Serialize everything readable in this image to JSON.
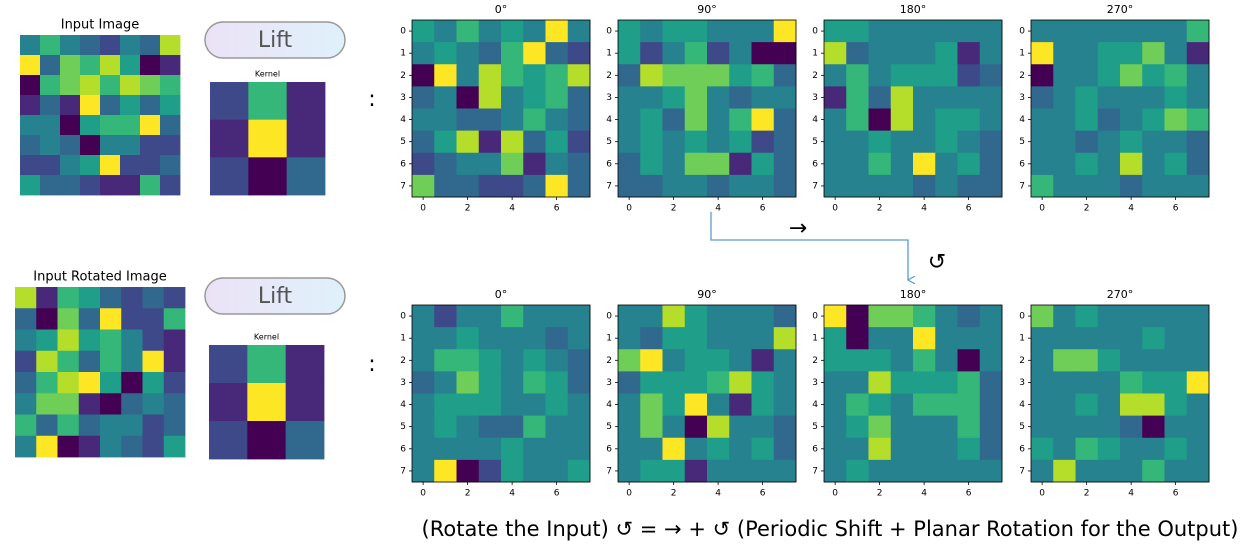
{
  "rows": [
    {
      "input": {
        "title": "Input Image",
        "cells": [
          [
            4,
            6,
            4,
            3,
            2,
            4,
            3,
            8
          ],
          [
            9,
            3,
            7,
            6,
            8,
            5,
            0,
            1
          ],
          [
            0,
            6,
            7,
            8,
            6,
            8,
            7,
            6
          ],
          [
            1,
            3,
            1,
            9,
            3,
            5,
            3,
            5
          ],
          [
            4,
            4,
            0,
            5,
            6,
            6,
            9,
            3
          ],
          [
            3,
            4,
            3,
            0,
            4,
            4,
            2,
            2
          ],
          [
            2,
            2,
            4,
            5,
            9,
            2,
            2,
            3
          ],
          [
            5,
            3,
            3,
            2,
            1,
            1,
            6,
            2
          ]
        ]
      },
      "button": "Lift",
      "kernel": {
        "title": "Kernel",
        "cells": [
          [
            2,
            6,
            1
          ],
          [
            1,
            9,
            1
          ],
          [
            2,
            0,
            3
          ]
        ]
      },
      "colon": ":",
      "outputs": [
        {
          "title": "0°",
          "cells": [
            [
              5,
              4,
              6,
              4,
              5,
              4,
              9,
              4
            ],
            [
              4,
              5,
              4,
              3,
              6,
              9,
              3,
              2
            ],
            [
              0,
              9,
              4,
              8,
              6,
              5,
              6,
              8
            ],
            [
              3,
              4,
              0,
              8,
              4,
              5,
              6,
              3
            ],
            [
              4,
              4,
              3,
              3,
              4,
              6,
              4,
              3
            ],
            [
              3,
              5,
              8,
              1,
              8,
              3,
              5,
              2
            ],
            [
              2,
              3,
              4,
              4,
              7,
              1,
              4,
              3
            ],
            [
              7,
              3,
              3,
              2,
              2,
              3,
              9,
              3
            ]
          ]
        },
        {
          "title": "90°",
          "cells": [
            [
              5,
              4,
              5,
              5,
              4,
              4,
              4,
              9
            ],
            [
              5,
              2,
              4,
              6,
              2,
              4,
              0,
              0
            ],
            [
              3,
              8,
              7,
              7,
              7,
              5,
              6,
              3
            ],
            [
              4,
              4,
              5,
              7,
              4,
              3,
              4,
              4
            ],
            [
              4,
              5,
              3,
              7,
              4,
              6,
              9,
              3
            ],
            [
              4,
              5,
              4,
              5,
              4,
              5,
              2,
              3
            ],
            [
              3,
              5,
              4,
              7,
              7,
              1,
              5,
              3
            ],
            [
              3,
              3,
              4,
              4,
              3,
              4,
              4,
              3
            ]
          ]
        },
        {
          "title": "180°",
          "cells": [
            [
              5,
              5,
              4,
              4,
              4,
              4,
              4,
              4
            ],
            [
              8,
              3,
              4,
              4,
              4,
              5,
              1,
              4
            ],
            [
              4,
              6,
              4,
              5,
              5,
              5,
              2,
              3
            ],
            [
              1,
              6,
              3,
              8,
              4,
              4,
              4,
              4
            ],
            [
              4,
              6,
              0,
              8,
              4,
              5,
              5,
              4
            ],
            [
              4,
              4,
              5,
              4,
              4,
              5,
              4,
              3
            ],
            [
              4,
              4,
              6,
              4,
              9,
              4,
              5,
              3
            ],
            [
              4,
              4,
              4,
              4,
              3,
              4,
              3,
              3
            ]
          ]
        },
        {
          "title": "270°",
          "cells": [
            [
              4,
              4,
              4,
              4,
              4,
              4,
              4,
              6
            ],
            [
              9,
              4,
              4,
              5,
              5,
              7,
              4,
              1
            ],
            [
              0,
              4,
              4,
              5,
              7,
              5,
              6,
              4
            ],
            [
              3,
              4,
              5,
              4,
              4,
              4,
              5,
              4
            ],
            [
              4,
              4,
              5,
              3,
              4,
              5,
              7,
              6
            ],
            [
              4,
              4,
              3,
              4,
              5,
              4,
              4,
              3
            ],
            [
              4,
              4,
              5,
              4,
              8,
              4,
              5,
              3
            ],
            [
              6,
              4,
              4,
              4,
              3,
              4,
              4,
              4
            ]
          ]
        }
      ]
    },
    {
      "input": {
        "title": "Input Rotated Image",
        "cells": [
          [
            8,
            1,
            6,
            5,
            3,
            2,
            3,
            2
          ],
          [
            3,
            0,
            7,
            3,
            9,
            2,
            2,
            6
          ],
          [
            4,
            5,
            8,
            5,
            6,
            4,
            2,
            1
          ],
          [
            2,
            8,
            6,
            3,
            6,
            4,
            9,
            1
          ],
          [
            3,
            6,
            8,
            9,
            5,
            0,
            5,
            2
          ],
          [
            4,
            7,
            7,
            1,
            0,
            3,
            4,
            3
          ],
          [
            6,
            3,
            6,
            3,
            4,
            4,
            2,
            3
          ],
          [
            4,
            9,
            0,
            1,
            4,
            3,
            2,
            5
          ]
        ]
      },
      "button": "Lift",
      "kernel": {
        "title": "Kernel",
        "cells": [
          [
            2,
            6,
            1
          ],
          [
            1,
            9,
            1
          ],
          [
            2,
            0,
            3
          ]
        ]
      },
      "colon": ":",
      "outputs": [
        {
          "title": "0°",
          "cells": [
            [
              4,
              2,
              4,
              4,
              6,
              4,
              4,
              4
            ],
            [
              4,
              4,
              5,
              4,
              4,
              4,
              3,
              4
            ],
            [
              4,
              6,
              6,
              5,
              4,
              5,
              4,
              3
            ],
            [
              3,
              4,
              7,
              5,
              4,
              6,
              5,
              3
            ],
            [
              4,
              5,
              5,
              5,
              4,
              4,
              5,
              4
            ],
            [
              4,
              5,
              4,
              3,
              3,
              6,
              4,
              4
            ],
            [
              4,
              4,
              4,
              4,
              5,
              4,
              4,
              4
            ],
            [
              4,
              9,
              0,
              2,
              5,
              4,
              4,
              5
            ]
          ]
        },
        {
          "title": "90°",
          "cells": [
            [
              4,
              4,
              8,
              5,
              4,
              4,
              4,
              3
            ],
            [
              4,
              3,
              5,
              5,
              4,
              4,
              4,
              8
            ],
            [
              7,
              9,
              4,
              5,
              5,
              4,
              1,
              4
            ],
            [
              3,
              5,
              5,
              5,
              6,
              8,
              5,
              4
            ],
            [
              4,
              7,
              5,
              9,
              4,
              1,
              5,
              4
            ],
            [
              4,
              7,
              4,
              0,
              8,
              4,
              4,
              3
            ],
            [
              4,
              4,
              9,
              4,
              5,
              4,
              5,
              3
            ],
            [
              4,
              5,
              5,
              1,
              4,
              4,
              4,
              4
            ]
          ]
        },
        {
          "title": "180°",
          "cells": [
            [
              9,
              0,
              7,
              7,
              6,
              4,
              3,
              4
            ],
            [
              5,
              0,
              4,
              4,
              9,
              4,
              4,
              4
            ],
            [
              5,
              5,
              5,
              4,
              6,
              4,
              0,
              4
            ],
            [
              4,
              4,
              8,
              5,
              5,
              5,
              6,
              3
            ],
            [
              4,
              6,
              5,
              4,
              6,
              6,
              6,
              3
            ],
            [
              4,
              5,
              7,
              4,
              4,
              4,
              6,
              3
            ],
            [
              4,
              4,
              8,
              4,
              4,
              4,
              5,
              3
            ],
            [
              4,
              5,
              4,
              4,
              4,
              4,
              4,
              4
            ]
          ]
        },
        {
          "title": "270°",
          "cells": [
            [
              7,
              4,
              5,
              4,
              4,
              4,
              4,
              4
            ],
            [
              4,
              4,
              4,
              4,
              4,
              5,
              4,
              4
            ],
            [
              4,
              7,
              7,
              5,
              4,
              4,
              4,
              4
            ],
            [
              4,
              4,
              4,
              4,
              6,
              5,
              5,
              9
            ],
            [
              4,
              4,
              5,
              4,
              8,
              8,
              5,
              4
            ],
            [
              4,
              4,
              4,
              4,
              3,
              0,
              4,
              4
            ],
            [
              5,
              4,
              6,
              5,
              4,
              4,
              5,
              4
            ],
            [
              4,
              8,
              4,
              4,
              4,
              6,
              4,
              4
            ]
          ]
        }
      ]
    }
  ],
  "xticks": [
    0,
    2,
    4,
    6
  ],
  "yticks": [
    0,
    1,
    2,
    3,
    4,
    5,
    6,
    7
  ],
  "vlim": [
    0,
    9
  ],
  "colormap": "viridis",
  "arrows": {
    "shift": "→",
    "rotate": "↺"
  },
  "caption": "(Rotate the Input) ↺  = → + ↺ (Periodic Shift + Planar Rotation for the Output)"
}
